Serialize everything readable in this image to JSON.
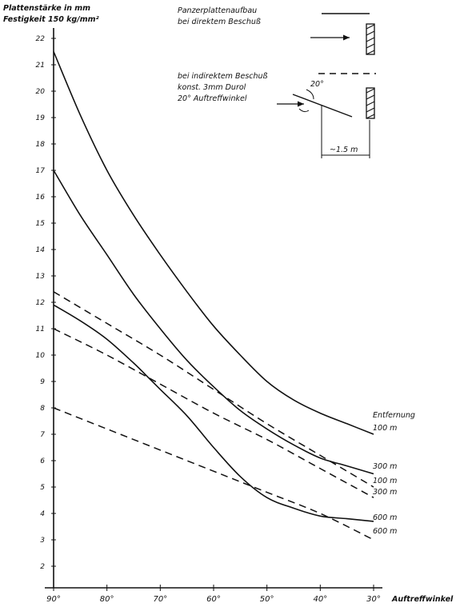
{
  "chart_data": {
    "type": "line",
    "ylabel_line1": "Plattenstärke in mm",
    "ylabel_line2": "Festigkeit 150 kg/mm²",
    "xlabel": "Auftreffwinkel",
    "xlim": [
      90,
      30
    ],
    "ylim": [
      1.5,
      22.3
    ],
    "x_ticks": [
      "90°",
      "80°",
      "70°",
      "60°",
      "50°",
      "40°",
      "30°"
    ],
    "y_ticks": [
      "2",
      "3",
      "4",
      "5",
      "6",
      "7",
      "8",
      "9",
      "10",
      "11",
      "12",
      "13",
      "14",
      "15",
      "16",
      "17",
      "18",
      "19",
      "20",
      "21",
      "22"
    ],
    "grid": false,
    "legend_title": "Entfernung",
    "series": [
      {
        "name": "100 m",
        "style": "solid",
        "x": [
          90,
          85,
          80,
          75,
          70,
          65,
          60,
          55,
          50,
          45,
          40,
          35,
          30
        ],
        "y": [
          21.5,
          19.1,
          17.0,
          15.3,
          13.8,
          12.4,
          11.1,
          10.0,
          9.0,
          8.3,
          7.8,
          7.4,
          7.0
        ]
      },
      {
        "name": "300 m",
        "style": "solid",
        "x": [
          90,
          85,
          80,
          75,
          70,
          65,
          60,
          55,
          50,
          45,
          40,
          35,
          30
        ],
        "y": [
          17.0,
          15.3,
          13.8,
          12.3,
          11.0,
          9.8,
          8.8,
          7.9,
          7.2,
          6.6,
          6.1,
          5.8,
          5.5
        ]
      },
      {
        "name": "600 m",
        "style": "solid",
        "x": [
          90,
          85,
          80,
          75,
          72,
          70,
          65,
          60,
          55,
          50,
          45,
          40,
          35,
          30
        ],
        "y": [
          11.9,
          11.3,
          10.6,
          9.7,
          9.1,
          8.7,
          7.7,
          6.5,
          5.4,
          4.6,
          4.2,
          3.9,
          3.8,
          3.7
        ]
      },
      {
        "name": "100 m",
        "style": "dashed",
        "x": [
          90,
          80,
          70,
          60,
          50,
          40,
          30
        ],
        "y": [
          12.4,
          11.2,
          10.0,
          8.7,
          7.4,
          6.2,
          5.0
        ]
      },
      {
        "name": "300 m",
        "style": "dashed",
        "x": [
          90,
          80,
          70,
          60,
          50,
          40,
          30
        ],
        "y": [
          11.0,
          10.0,
          8.9,
          7.8,
          6.8,
          5.7,
          4.6
        ]
      },
      {
        "name": "600 m",
        "style": "dashed",
        "x": [
          90,
          80,
          70,
          60,
          50,
          40,
          30
        ],
        "y": [
          8.0,
          7.2,
          6.4,
          5.6,
          4.8,
          4.0,
          3.0
        ]
      }
    ],
    "annotations": {
      "direct_title": "Panzerplattenaufbau",
      "direct_sub": "bei direktem Beschuß",
      "indirect_title": "bei indirektem Beschuß",
      "indirect_l2": "konst. 3mm Durol",
      "indirect_l3": "20° Auftreffwinkel",
      "angle_label": "20°",
      "distance_label": "~1.5 m"
    }
  }
}
